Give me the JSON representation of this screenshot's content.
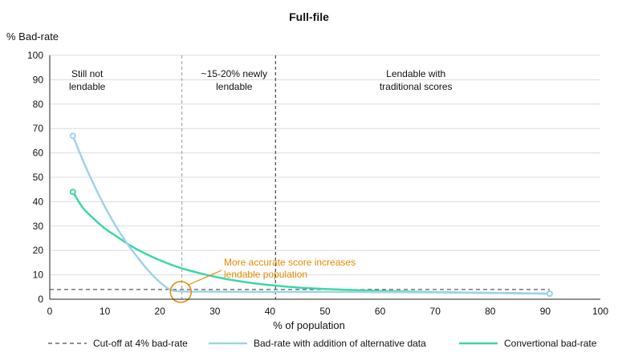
{
  "chart_data": {
    "type": "line",
    "title": "Full-file",
    "ylabel": "% Bad-rate",
    "xlabel": "% of population",
    "xlim": [
      0,
      100
    ],
    "ylim": [
      0,
      100
    ],
    "xticks": [
      0,
      10,
      20,
      30,
      40,
      50,
      60,
      70,
      80,
      90,
      100
    ],
    "yticks": [
      0,
      10,
      20,
      30,
      40,
      50,
      60,
      70,
      80,
      90,
      100
    ],
    "grid": "horizontal",
    "legend_position": "bottom",
    "series": [
      {
        "name": "Bad-rate with addition of alternative data",
        "color": "#9fd3ea",
        "x": [
          4.2,
          6,
          8,
          10,
          12,
          14,
          16,
          18,
          20,
          22,
          24,
          26,
          30,
          40,
          50,
          60,
          70,
          80,
          90.8
        ],
        "y": [
          67,
          57,
          47,
          38,
          30,
          23,
          17,
          11.5,
          7,
          3.8,
          3.2,
          3.1,
          3.1,
          3.0,
          3.0,
          2.9,
          2.8,
          2.6,
          2.3
        ]
      },
      {
        "name": "Convertional bad-rate",
        "color": "#3fd6a6",
        "x": [
          4.2,
          6,
          8,
          10,
          12,
          15,
          18,
          20,
          22,
          25,
          30,
          35,
          40,
          45,
          50,
          60,
          70,
          80,
          90.8
        ],
        "y": [
          44,
          37.5,
          33,
          29,
          26,
          21.5,
          18,
          16,
          14.2,
          12,
          9.2,
          7.2,
          5.8,
          4.8,
          4.2,
          3.4,
          2.9,
          2.6,
          2.3
        ]
      }
    ],
    "cutoff": {
      "name": "Cut-off at 4% bad-rate",
      "y": 4,
      "x_end": 90.8
    },
    "dividers": [
      {
        "x": 24,
        "style": "gray-dashed"
      },
      {
        "x": 41,
        "style": "black-dashed"
      }
    ],
    "regions": [
      {
        "x": 6.8,
        "lines": [
          "Still not",
          "lendable"
        ]
      },
      {
        "x": 33.5,
        "lines": [
          "~15-20% newly",
          "lendable"
        ]
      },
      {
        "x": 66.5,
        "lines": [
          "Lendable with",
          "traditional scores"
        ]
      }
    ],
    "annotation": {
      "lines": [
        "More accurate score increases",
        "lendable population"
      ],
      "circle": {
        "x": 23.8,
        "y": 3
      },
      "color": "#e58a00"
    }
  }
}
